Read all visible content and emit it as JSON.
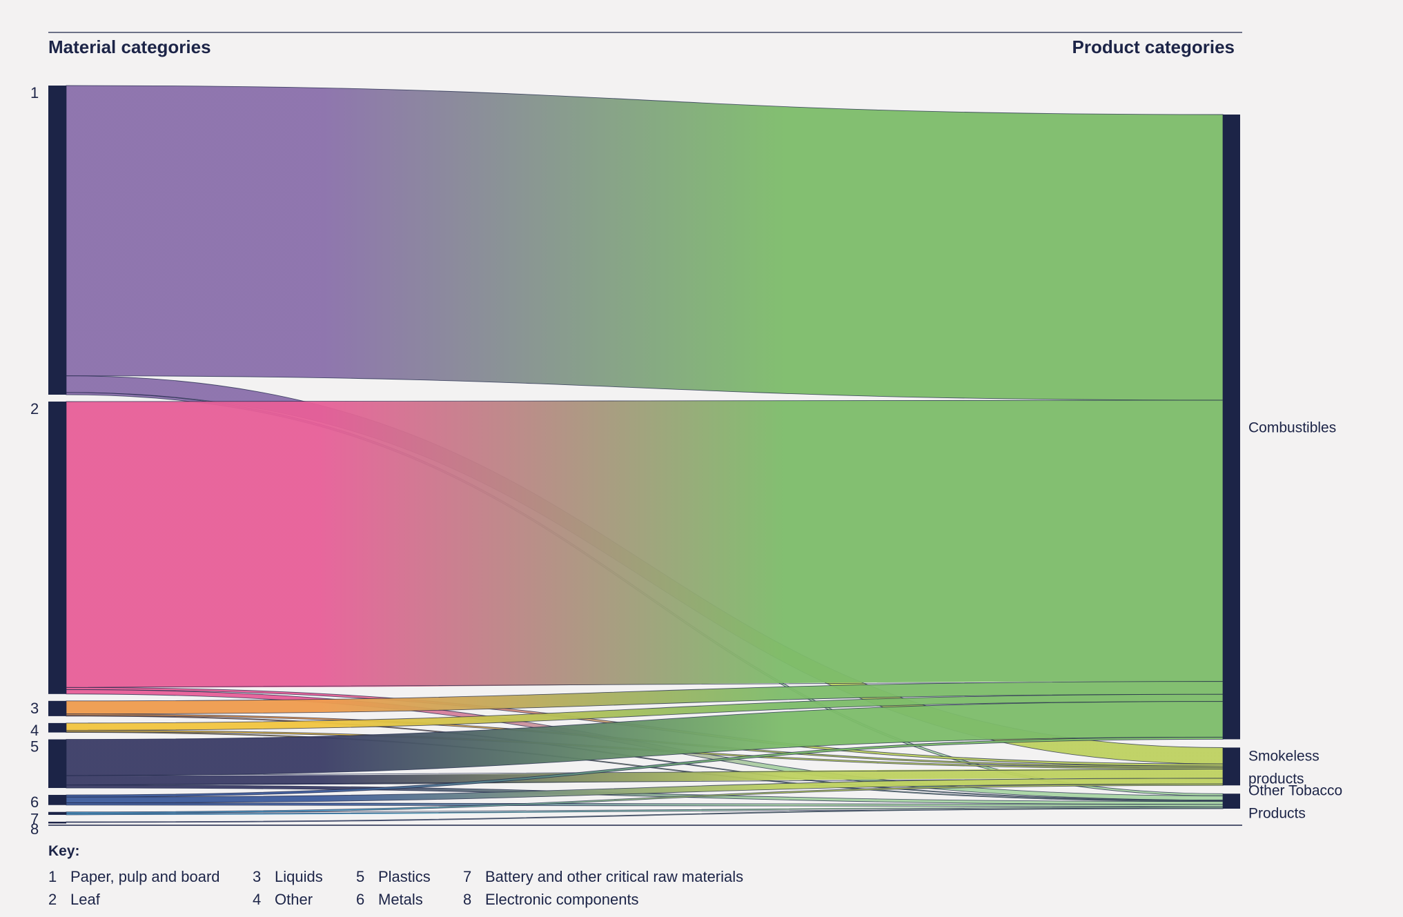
{
  "headers": {
    "left": "Material categories",
    "right": "Product categories"
  },
  "key": {
    "title": "Key:",
    "items": [
      {
        "num": "1",
        "label": "Paper, pulp and board"
      },
      {
        "num": "2",
        "label": "Leaf"
      },
      {
        "num": "3",
        "label": "Liquids"
      },
      {
        "num": "4",
        "label": "Other"
      },
      {
        "num": "5",
        "label": "Plastics"
      },
      {
        "num": "6",
        "label": "Metals"
      },
      {
        "num": "7",
        "label": "Battery and other critical raw materials"
      },
      {
        "num": "8",
        "label": "Electronic components"
      }
    ]
  },
  "chart_data": {
    "type": "sankey",
    "sources": [
      {
        "id": "1",
        "name": "Paper, pulp and board",
        "color": "#8a6fab"
      },
      {
        "id": "2",
        "name": "Leaf",
        "color": "#e75f98"
      },
      {
        "id": "3",
        "name": "Liquids",
        "color": "#ef9c4e"
      },
      {
        "id": "4",
        "name": "Other",
        "color": "#f2c53f"
      },
      {
        "id": "5",
        "name": "Plastics",
        "color": "#3a3c66"
      },
      {
        "id": "6",
        "name": "Metals",
        "color": "#3d5b9c"
      },
      {
        "id": "7",
        "name": "Battery and other critical raw materials",
        "color": "#4fa8d8"
      },
      {
        "id": "8",
        "name": "Electronic components",
        "color": "#7d8fb0"
      }
    ],
    "targets": [
      {
        "id": "combustibles",
        "name": "Combustibles",
        "label_lines": [
          "Combustibles"
        ],
        "color": "#7dbc6a"
      },
      {
        "id": "smokeless",
        "name": "Smokeless products",
        "label_lines": [
          "Smokeless",
          "products"
        ],
        "color": "#bed160"
      },
      {
        "id": "otp",
        "name": "Other Tobacco Products",
        "label_lines": [
          "Other Tobacco",
          "Products"
        ],
        "color": "#a8d4a4"
      }
    ],
    "links": [
      {
        "source": "1",
        "target": "combustibles",
        "value": 40.0
      },
      {
        "source": "1",
        "target": "smokeless",
        "value": 2.3
      },
      {
        "source": "1",
        "target": "otp",
        "value": 0.3
      },
      {
        "source": "2",
        "target": "combustibles",
        "value": 39.4
      },
      {
        "source": "2",
        "target": "smokeless",
        "value": 0.3
      },
      {
        "source": "2",
        "target": "otp",
        "value": 0.6
      },
      {
        "source": "3",
        "target": "combustibles",
        "value": 1.8
      },
      {
        "source": "3",
        "target": "smokeless",
        "value": 0.2
      },
      {
        "source": "3",
        "target": "otp",
        "value": 0.1
      },
      {
        "source": "4",
        "target": "combustibles",
        "value": 1.0
      },
      {
        "source": "4",
        "target": "smokeless",
        "value": 0.2
      },
      {
        "source": "4",
        "target": "otp",
        "value": 0.1
      },
      {
        "source": "5",
        "target": "combustibles",
        "value": 5.0
      },
      {
        "source": "5",
        "target": "smokeless",
        "value": 1.3
      },
      {
        "source": "5",
        "target": "otp",
        "value": 0.4
      },
      {
        "source": "6",
        "target": "combustibles",
        "value": 0.3
      },
      {
        "source": "6",
        "target": "smokeless",
        "value": 0.8
      },
      {
        "source": "6",
        "target": "otp",
        "value": 0.3
      },
      {
        "source": "7",
        "target": "smokeless",
        "value": 0.2
      },
      {
        "source": "7",
        "target": "otp",
        "value": 0.2
      },
      {
        "source": "8",
        "target": "otp",
        "value": 0.1
      }
    ]
  }
}
